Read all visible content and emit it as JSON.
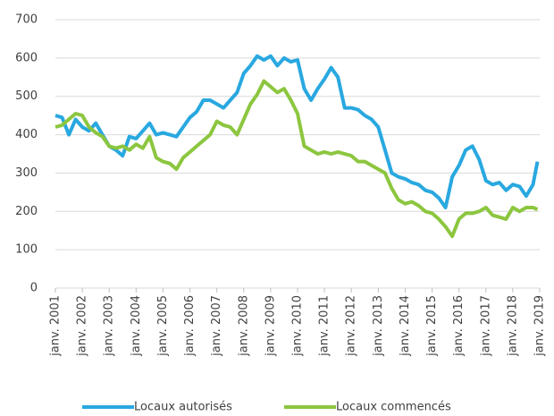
{
  "chart_data": {
    "type": "line",
    "x": [
      "2001-01",
      "2001-04",
      "2001-07",
      "2001-10",
      "2002-01",
      "2002-04",
      "2002-07",
      "2002-10",
      "2003-01",
      "2003-04",
      "2003-07",
      "2003-10",
      "2004-01",
      "2004-04",
      "2004-07",
      "2004-10",
      "2005-01",
      "2005-04",
      "2005-07",
      "2005-10",
      "2006-01",
      "2006-04",
      "2006-07",
      "2006-10",
      "2007-01",
      "2007-04",
      "2007-07",
      "2007-10",
      "2008-01",
      "2008-04",
      "2008-07",
      "2008-10",
      "2009-01",
      "2009-04",
      "2009-07",
      "2009-10",
      "2010-01",
      "2010-04",
      "2010-07",
      "2010-10",
      "2011-01",
      "2011-04",
      "2011-07",
      "2011-10",
      "2012-01",
      "2012-04",
      "2012-07",
      "2012-10",
      "2013-01",
      "2013-04",
      "2013-07",
      "2013-10",
      "2014-01",
      "2014-04",
      "2014-07",
      "2014-10",
      "2015-01",
      "2015-04",
      "2015-07",
      "2015-10",
      "2016-01",
      "2016-04",
      "2016-07",
      "2016-10",
      "2017-01",
      "2017-04",
      "2017-07",
      "2017-10",
      "2018-01",
      "2018-04",
      "2018-07",
      "2018-10",
      "2018-12"
    ],
    "series": [
      {
        "name": "Locaux autorisés",
        "color": "#29a8e0",
        "values": [
          450,
          445,
          400,
          440,
          420,
          410,
          430,
          400,
          370,
          360,
          345,
          395,
          390,
          410,
          430,
          400,
          405,
          400,
          395,
          420,
          445,
          460,
          490,
          490,
          480,
          470,
          490,
          510,
          560,
          580,
          605,
          595,
          605,
          580,
          600,
          590,
          595,
          520,
          490,
          520,
          545,
          575,
          550,
          470,
          470,
          465,
          450,
          440,
          420,
          360,
          300,
          290,
          285,
          275,
          270,
          255,
          250,
          235,
          210,
          290,
          320,
          360,
          370,
          335,
          280,
          270,
          275,
          255,
          270,
          265,
          240,
          270,
          330
        ]
      },
      {
        "name": "Locaux commencés",
        "color": "#8cc63f",
        "values": [
          420,
          425,
          440,
          455,
          450,
          420,
          405,
          395,
          370,
          365,
          370,
          360,
          375,
          365,
          395,
          340,
          330,
          325,
          310,
          340,
          355,
          370,
          385,
          400,
          435,
          425,
          420,
          400,
          440,
          480,
          505,
          540,
          525,
          510,
          520,
          490,
          455,
          370,
          360,
          350,
          355,
          350,
          355,
          350,
          345,
          330,
          330,
          320,
          310,
          300,
          260,
          230,
          220,
          225,
          215,
          200,
          195,
          180,
          160,
          135,
          180,
          195,
          195,
          200,
          210,
          190,
          185,
          180,
          210,
          200,
          210,
          210,
          205
        ]
      }
    ],
    "ylim": [
      0,
      700
    ],
    "yticks": [
      0,
      100,
      200,
      300,
      400,
      500,
      600,
      700
    ],
    "xlim": [
      "2001-01",
      "2019-01"
    ],
    "xticks": [
      {
        "value": "2001-01",
        "label": "janv. 2001"
      },
      {
        "value": "2002-01",
        "label": "janv. 2002"
      },
      {
        "value": "2003-01",
        "label": "janv. 2003"
      },
      {
        "value": "2004-01",
        "label": "janv. 2004"
      },
      {
        "value": "2005-01",
        "label": "janv. 2005"
      },
      {
        "value": "2006-01",
        "label": "janv. 2006"
      },
      {
        "value": "2007-01",
        "label": "janv. 2007"
      },
      {
        "value": "2008-01",
        "label": "janv. 2008"
      },
      {
        "value": "2009-01",
        "label": "janv. 2009"
      },
      {
        "value": "2010-01",
        "label": "janv. 2010"
      },
      {
        "value": "2011-01",
        "label": "janv. 2011"
      },
      {
        "value": "2012-01",
        "label": "janv. 2012"
      },
      {
        "value": "2013-01",
        "label": "janv. 2013"
      },
      {
        "value": "2014-01",
        "label": "janv. 2014"
      },
      {
        "value": "2015-01",
        "label": "janv. 2015"
      },
      {
        "value": "2016-01",
        "label": "janv. 2016"
      },
      {
        "value": "2017-01",
        "label": "janv. 2017"
      },
      {
        "value": "2018-01",
        "label": "janv. 2018"
      },
      {
        "value": "2019-01",
        "label": "janv. 2019"
      }
    ],
    "grid": true,
    "legend": "bottom"
  }
}
